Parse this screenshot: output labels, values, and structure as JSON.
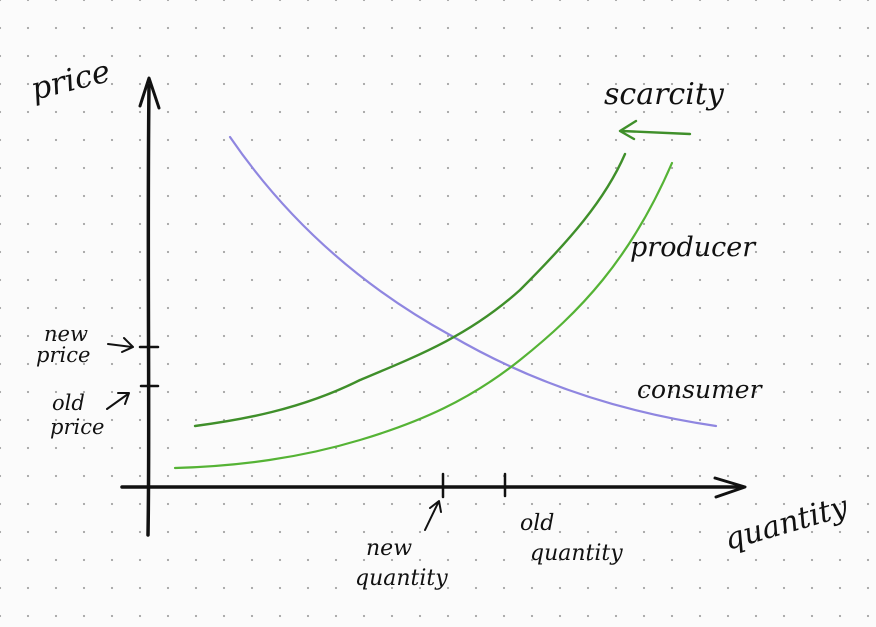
{
  "labels": {
    "y_axis": "price",
    "x_axis": "quantity",
    "new_price": [
      "new",
      "price"
    ],
    "old_price": [
      "old",
      "price"
    ],
    "new_quantity": [
      "new",
      "quantity"
    ],
    "old_quantity": [
      "old",
      "quantity"
    ]
  },
  "curves": {
    "scarcity": {
      "label": "scarcity",
      "color": "#3f8f2a"
    },
    "producer": {
      "label": "producer",
      "color": "#55b335"
    },
    "consumer": {
      "label": "consumer",
      "color": "#8f86e0"
    }
  },
  "ink_color": "#111111"
}
